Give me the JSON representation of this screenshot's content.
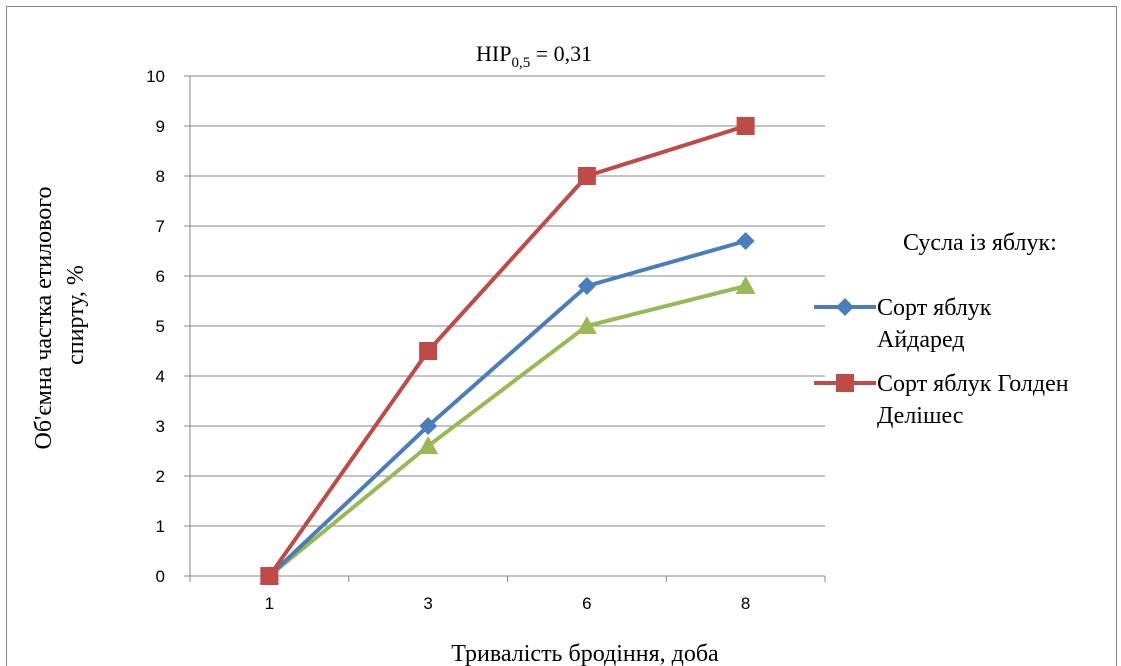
{
  "chart_data": {
    "type": "line",
    "annotation": "НІР",
    "annotation_sub": "0,5",
    "annotation_value": " = 0,31",
    "xlabel": "Тривалість бродіння,  доба",
    "ylabel_line1": "Об'ємна частка етилового",
    "ylabel_line2": "спирту, %",
    "categories": [
      "1",
      "3",
      "6",
      "8"
    ],
    "ylim": [
      0,
      10
    ],
    "yticks": [
      "0",
      "1",
      "2",
      "3",
      "4",
      "5",
      "6",
      "7",
      "8",
      "9",
      "10"
    ],
    "grid": true,
    "legend_position": "right",
    "legend_title": "Сусла із яблук:",
    "series": [
      {
        "name_line1": "Сорт яблук",
        "name_line2": "Айдаред",
        "marker": "diamond",
        "color": "#4a7ebb",
        "values": [
          0,
          3.0,
          5.8,
          6.7
        ]
      },
      {
        "name_line1": "Сорт яблук Голден",
        "name_line2": "Делішес",
        "marker": "square",
        "color": "#be4b48",
        "values": [
          0,
          4.5,
          8.0,
          9.0
        ]
      },
      {
        "name_line1": "",
        "name_line2": "",
        "marker": "triangle",
        "color": "#98b954",
        "values": [
          0,
          2.6,
          5.0,
          5.8
        ]
      }
    ]
  }
}
